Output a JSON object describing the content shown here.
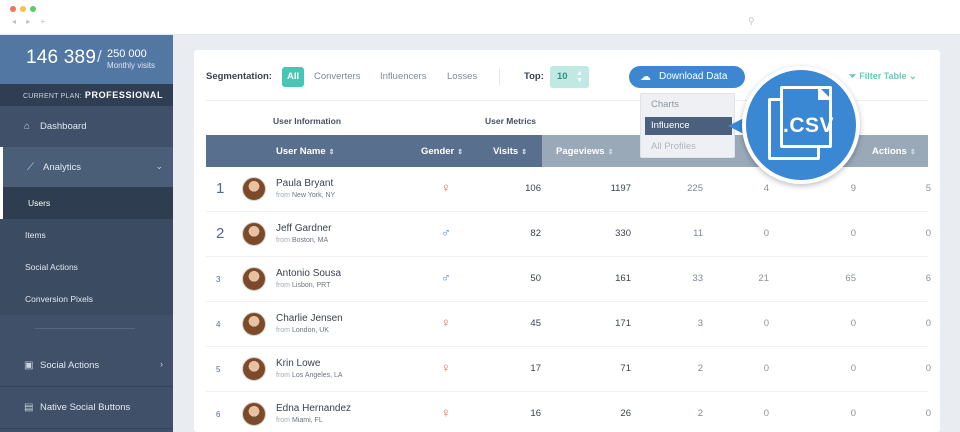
{
  "browser": {
    "dots": [
      "#f26f5e",
      "#f6c04a",
      "#5cc96c"
    ],
    "nav_glyphs": "◂ ▸  +",
    "search_glyph": "⚲"
  },
  "sidebar": {
    "visits_current": "146 389",
    "visits_sep": "/",
    "visits_total": "250 000",
    "visits_label": "Monthly visits",
    "plan_label": "CURRENT PLAN:",
    "plan_value": "PROFESSIONAL",
    "items": [
      {
        "icon": "home-icon",
        "label": "Dashboard"
      },
      {
        "icon": "chart-icon",
        "label": "Analytics",
        "expanded": true
      },
      {
        "icon": "comment-icon",
        "label": "Social Actions"
      },
      {
        "icon": "facebook-icon",
        "label": "Native Social Buttons"
      }
    ],
    "subitems": [
      "Users",
      "Items",
      "Social Actions",
      "Conversion Pixels"
    ]
  },
  "toolbar": {
    "segmentation_label": "Segmentation:",
    "segments": [
      "All",
      "Converters",
      "Influencers",
      "Losses"
    ],
    "top_label": "Top:",
    "top_value": "10",
    "download_label": "Download Data",
    "filter_label": "Filter Table",
    "accent": "#45c7b3",
    "download_color": "#3d86d0"
  },
  "dropdown": {
    "items": [
      "Charts",
      "Influence",
      "All Profiles"
    ],
    "selected": "Influence"
  },
  "callout": {
    "label": ".CSV"
  },
  "table": {
    "group_headers": [
      "User Information",
      "User Metrics"
    ],
    "columns": [
      "User Name",
      "Gender",
      "Visits",
      "Pageviews",
      "Actions"
    ],
    "sort_glyph": "⇕",
    "from_label": "from",
    "rows": [
      {
        "rank": "1",
        "name": "Paula Bryant",
        "location": "New York, NY",
        "gender": "♀",
        "visits": "106",
        "pageviews": "1197",
        "c1": "225",
        "c2": "4",
        "c3": "9",
        "actions": "5"
      },
      {
        "rank": "2",
        "name": "Jeff Gardner",
        "location": "Boston, MA",
        "gender": "♂",
        "visits": "82",
        "pageviews": "330",
        "c1": "11",
        "c2": "0",
        "c3": "0",
        "actions": "0"
      },
      {
        "rank": "3",
        "name": "Antonio Sousa",
        "location": "Lisbon, PRT",
        "gender": "♂",
        "visits": "50",
        "pageviews": "161",
        "c1": "33",
        "c2": "21",
        "c3": "65",
        "actions": "6"
      },
      {
        "rank": "4",
        "name": "Charlie Jensen",
        "location": "London, UK",
        "gender": "♀",
        "visits": "45",
        "pageviews": "171",
        "c1": "3",
        "c2": "0",
        "c3": "0",
        "actions": "0"
      },
      {
        "rank": "5",
        "name": "Krin Lowe",
        "location": "Los Angeles, LA",
        "gender": "♀",
        "visits": "17",
        "pageviews": "71",
        "c1": "2",
        "c2": "0",
        "c3": "0",
        "actions": "0"
      },
      {
        "rank": "6",
        "name": "Edna Hernandez",
        "location": "Miami, FL",
        "gender": "♀",
        "visits": "16",
        "pageviews": "26",
        "c1": "2",
        "c2": "0",
        "c3": "0",
        "actions": "0"
      }
    ],
    "female_color": "#e26a5a",
    "male_color": "#3d8fd6"
  }
}
